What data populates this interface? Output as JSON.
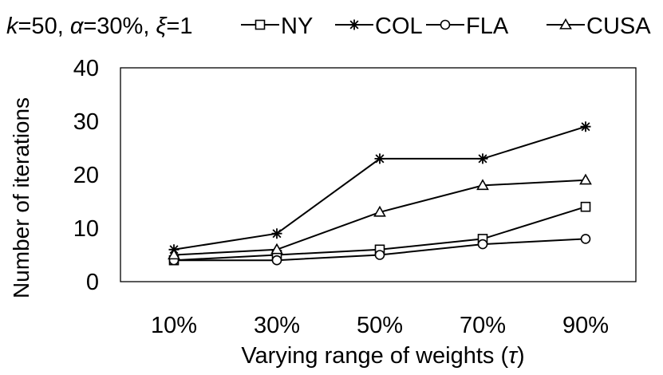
{
  "chart_data": {
    "type": "line",
    "params_label": {
      "k": "k",
      "k_val": "=50, ",
      "alpha": "α",
      "alpha_val": "=30%, ",
      "xi": "ξ",
      "xi_val": "=1"
    },
    "categories": [
      "10%",
      "30%",
      "50%",
      "70%",
      "90%"
    ],
    "series": [
      {
        "name": "NY",
        "marker": "square",
        "values": [
          4,
          5,
          6,
          8,
          14
        ]
      },
      {
        "name": "COL",
        "marker": "asterisk",
        "values": [
          6,
          9,
          23,
          23,
          29
        ]
      },
      {
        "name": "FLA",
        "marker": "circle",
        "values": [
          4,
          4,
          5,
          7,
          8
        ]
      },
      {
        "name": "CUSA",
        "marker": "triangle",
        "values": [
          5,
          6,
          13,
          18,
          19
        ]
      }
    ],
    "xlabel": "Varying range of weights (",
    "xlabel_symbol": "τ",
    "xlabel_end": ")",
    "ylabel": "Number of iterations",
    "ylim": [
      0,
      40
    ],
    "yticks": [
      "0",
      "10",
      "20",
      "30",
      "40"
    ],
    "grid": false,
    "legend_position": "top"
  }
}
